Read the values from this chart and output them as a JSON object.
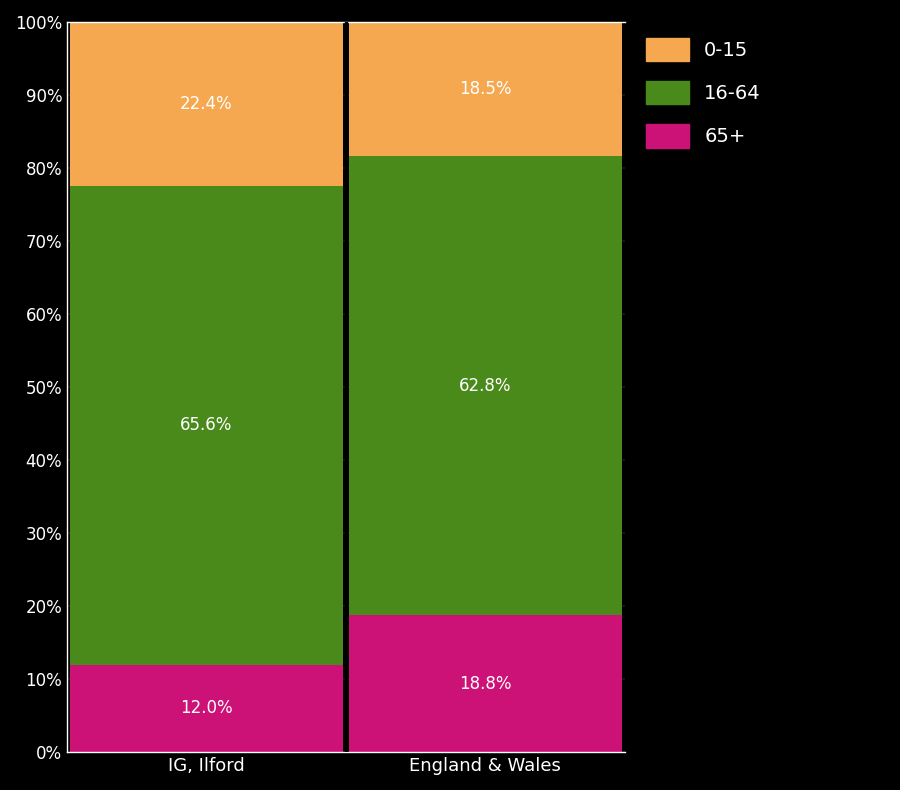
{
  "categories": [
    "IG, Ilford",
    "England & Wales"
  ],
  "segments": {
    "65+": [
      12.0,
      18.8
    ],
    "16-64": [
      65.6,
      62.8
    ],
    "0-15": [
      22.4,
      18.5
    ]
  },
  "colors": {
    "65+": "#cc1177",
    "16-64": "#4a8a1a",
    "0-15": "#f5a850"
  },
  "label_colors": {
    "65+": "white",
    "16-64": "white",
    "0-15": "white"
  },
  "background_color": "#000000",
  "axes_facecolor": "#000000",
  "text_color": "#ffffff",
  "bar_width": 0.98,
  "ylim": [
    0,
    100
  ],
  "yticks": [
    0,
    10,
    20,
    30,
    40,
    50,
    60,
    70,
    80,
    90,
    100
  ],
  "ytick_labels": [
    "0%",
    "10%",
    "20%",
    "30%",
    "40%",
    "50%",
    "60%",
    "70%",
    "80%",
    "90%",
    "100%"
  ],
  "legend_order": [
    "0-15",
    "16-64",
    "65+"
  ],
  "figsize": [
    9.0,
    7.9
  ],
  "dpi": 100
}
